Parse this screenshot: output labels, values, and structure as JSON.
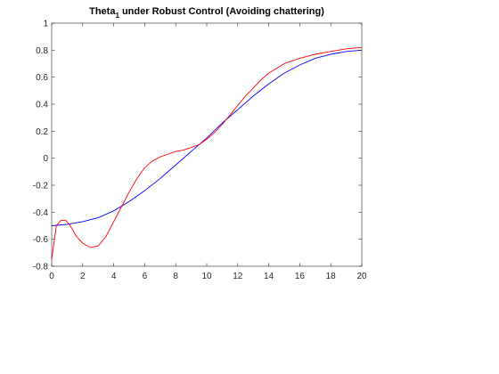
{
  "chart_data": {
    "type": "line",
    "title": "Theta",
    "title_subscript": "1",
    "title_rest": " under Robust Control (Avoiding chattering)",
    "xlabel": "",
    "ylabel": "",
    "xlim": [
      0,
      20
    ],
    "ylim": [
      -0.8,
      1
    ],
    "xticks": [
      0,
      2,
      4,
      6,
      8,
      10,
      12,
      14,
      16,
      18,
      20
    ],
    "yticks": [
      -0.8,
      -0.6,
      -0.4,
      -0.2,
      0,
      0.2,
      0.4,
      0.6,
      0.8,
      1
    ],
    "xtick_labels": [
      "0",
      "2",
      "4",
      "6",
      "8",
      "10",
      "12",
      "14",
      "16",
      "18",
      "20"
    ],
    "ytick_labels": [
      "-0.8",
      "-0.6",
      "-0.4",
      "-0.2",
      "0",
      "0.2",
      "0.4",
      "0.6",
      "0.8",
      "1"
    ],
    "grid": false,
    "legend": "none",
    "series": [
      {
        "color": "#0000ff",
        "x": [
          0,
          1,
          2,
          3,
          4,
          5,
          6,
          7,
          8,
          9,
          10,
          11,
          12,
          13,
          14,
          15,
          16,
          17,
          18,
          19,
          20
        ],
        "y": [
          -0.5,
          -0.49,
          -0.47,
          -0.44,
          -0.39,
          -0.32,
          -0.24,
          -0.15,
          -0.05,
          0.05,
          0.15,
          0.26,
          0.36,
          0.46,
          0.55,
          0.63,
          0.69,
          0.74,
          0.77,
          0.79,
          0.8
        ]
      },
      {
        "color": "#ff0000",
        "x": [
          0,
          0.3,
          0.6,
          0.9,
          1.2,
          1.6,
          2,
          2.5,
          3,
          3.5,
          4,
          4.5,
          5,
          5.5,
          6,
          6.5,
          7,
          7.5,
          8,
          8.5,
          9,
          9.5,
          10,
          10.5,
          11,
          11.5,
          12,
          12.5,
          13,
          13.5,
          14,
          15,
          16,
          17,
          18,
          19,
          20
        ],
        "y": [
          -0.75,
          -0.5,
          -0.46,
          -0.46,
          -0.5,
          -0.58,
          -0.63,
          -0.66,
          -0.65,
          -0.58,
          -0.47,
          -0.36,
          -0.25,
          -0.15,
          -0.07,
          -0.02,
          0.01,
          0.03,
          0.05,
          0.06,
          0.08,
          0.1,
          0.14,
          0.19,
          0.25,
          0.32,
          0.39,
          0.46,
          0.52,
          0.58,
          0.63,
          0.7,
          0.74,
          0.77,
          0.79,
          0.81,
          0.82
        ]
      }
    ]
  }
}
